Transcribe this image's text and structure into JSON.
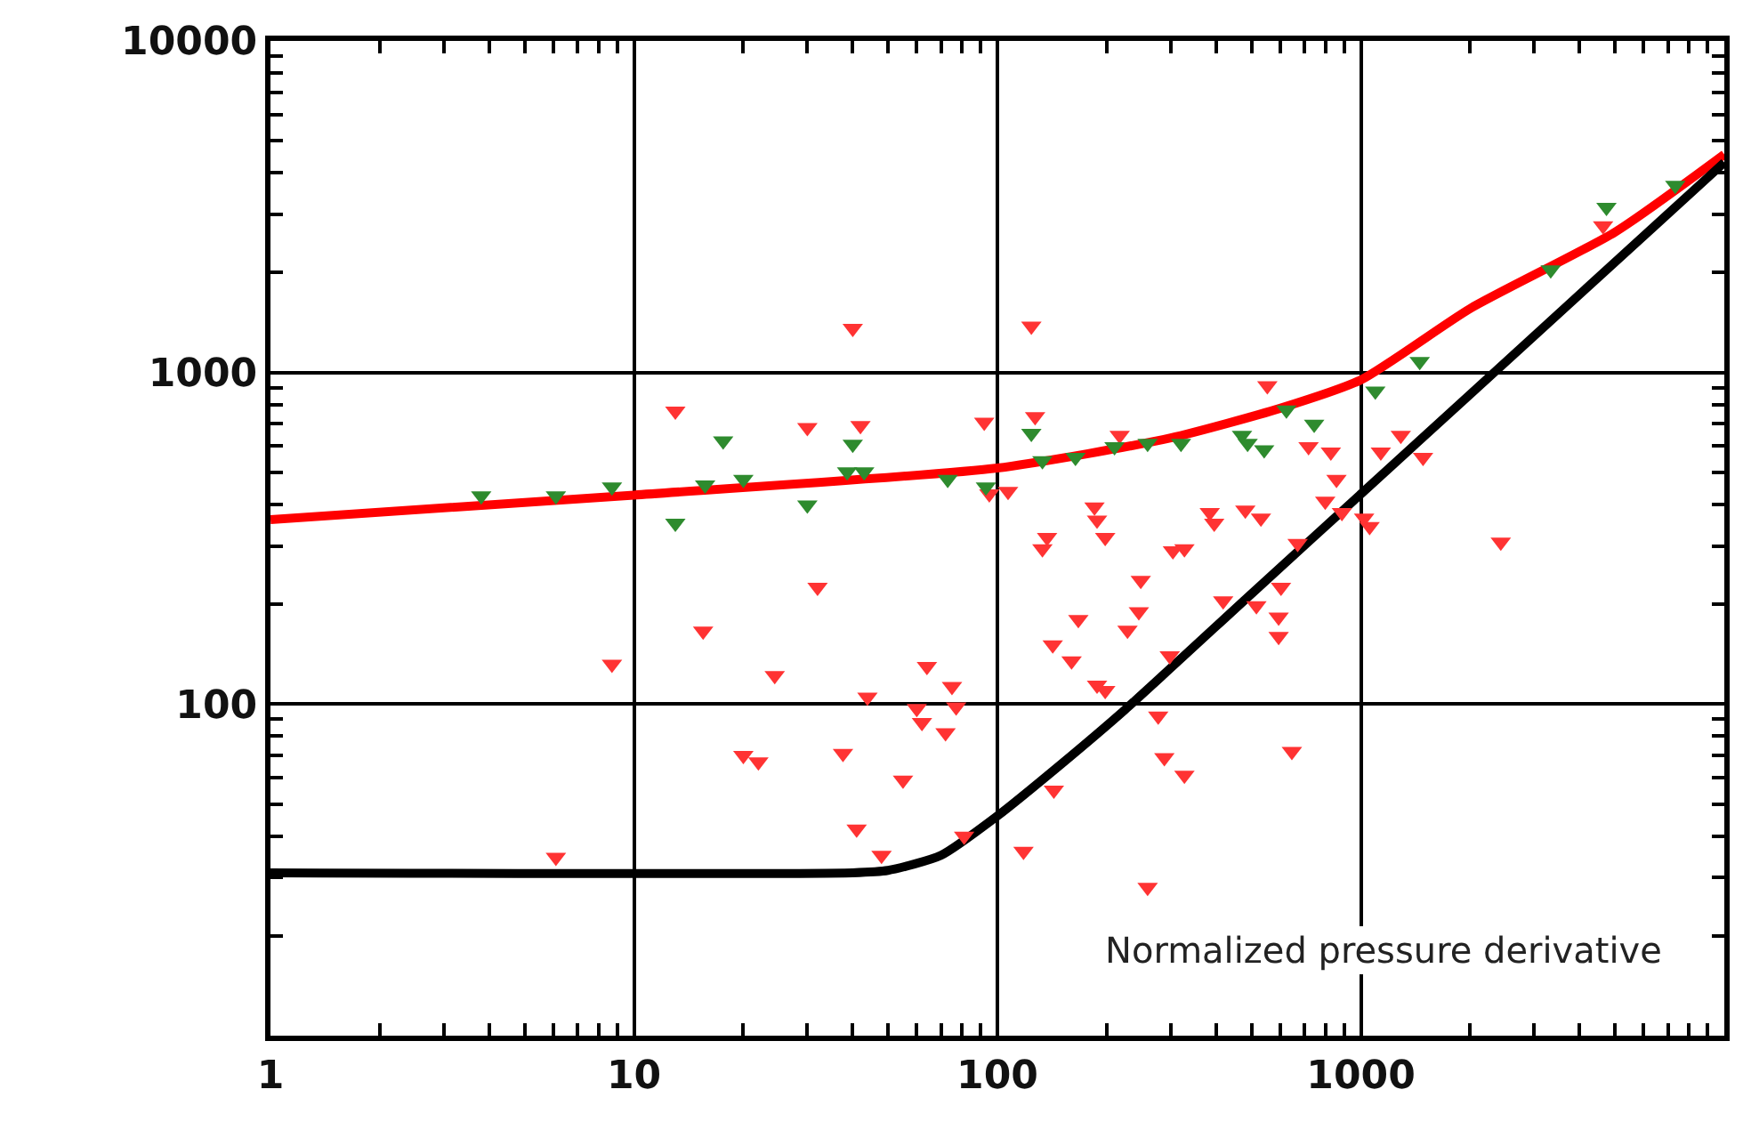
{
  "chart_data": {
    "type": "scatter",
    "log": "xy",
    "grid": true,
    "xlim": [
      1,
      10000
    ],
    "ylim": [
      10,
      10000
    ],
    "xticks": [
      1,
      10,
      100,
      1000,
      {
        "value": 10000,
        "label": null
      }
    ],
    "yticks": [
      {
        "value": 10,
        "label": null
      },
      100,
      1000,
      10000
    ],
    "annotations": [
      "Normalized pressure derivative"
    ],
    "series": [
      {
        "marker": "triangle",
        "color": "#ff3333",
        "x": [
          40,
          124,
          13,
          30,
          42,
          92,
          127,
          217,
          553,
          95,
          107,
          185,
          188,
          198,
          133,
          137,
          384,
          395,
          481,
          531,
          304,
          327,
          718,
          827,
          857,
          798,
          887,
          1057,
          1021,
          1135,
          1288,
          1483,
          2427,
          670,
          32,
          15.5,
          8.7,
          24.4,
          43.9,
          64,
          75,
          77,
          60,
          62,
          72,
          20,
          22,
          37.6,
          55,
          41,
          48,
          6.1,
          142,
          160,
          167,
          188,
          198,
          228,
          245,
          248,
          277,
          288,
          327,
          298,
          418,
          516,
          594,
          594,
          603,
          646,
          143,
          81,
          118,
          259,
          4640
        ],
        "values": [
          1360,
          1380,
          765,
          682,
          692,
          708,
          736,
          647,
          912,
          431,
          438,
          393,
          359,
          318,
          294,
          318,
          378,
          351,
          385,
          364,
          290,
          294,
          598,
          576,
          476,
          409,
          378,
          343,
          364,
          576,
          647,
          555,
          308,
          305,
          225,
          166,
          132,
          122,
          105,
          130,
          113,
          98,
          97,
          88,
          82,
          70,
          67,
          71,
          59,
          42,
          35,
          34.5,
          151,
          135,
          180,
          114,
          110,
          167,
          190,
          236,
          92,
          69,
          61,
          140,
          205,
          198,
          183,
          160,
          225,
          72,
          55,
          40,
          36,
          28,
          2770
        ]
      },
      {
        "marker": "triangle",
        "color": "#2e8b2e",
        "x": [
          3.8,
          6.1,
          8.7,
          13,
          15.7,
          17.6,
          20,
          30,
          38.6,
          40,
          43,
          73,
          93,
          124,
          133,
          164,
          210,
          259,
          320,
          471,
          488,
          542,
          624,
          744,
          1096,
          1452,
          3330,
          4740,
          7330
        ],
        "values": [
          425,
          425,
          452,
          351,
          458,
          622,
          476,
          399,
          502,
          608,
          502,
          476,
          452,
          656,
          542,
          555,
          598,
          612,
          612,
          647,
          612,
          585,
          771,
          698,
          879,
          1080,
          2040,
          3150,
          3670
        ]
      },
      {
        "type": "line",
        "marker": "none",
        "line_style": "solid",
        "color": "#ff0000",
        "x": [
          1,
          10,
          100,
          300,
          600,
          1000,
          2000,
          5000,
          10000
        ],
        "values": [
          360,
          427,
          515,
          635,
          780,
          950,
          1560,
          2650,
          4550
        ]
      },
      {
        "type": "line",
        "marker": "none",
        "line_style": "solid",
        "color": "#000000",
        "x": [
          1,
          40,
          50,
          70,
          100,
          150,
          224,
          500,
          1000,
          2000,
          4000,
          10000
        ],
        "values": [
          31,
          31,
          31.5,
          35,
          46,
          66,
          96,
          215,
          430,
          860,
          1720,
          4300
        ]
      }
    ]
  }
}
